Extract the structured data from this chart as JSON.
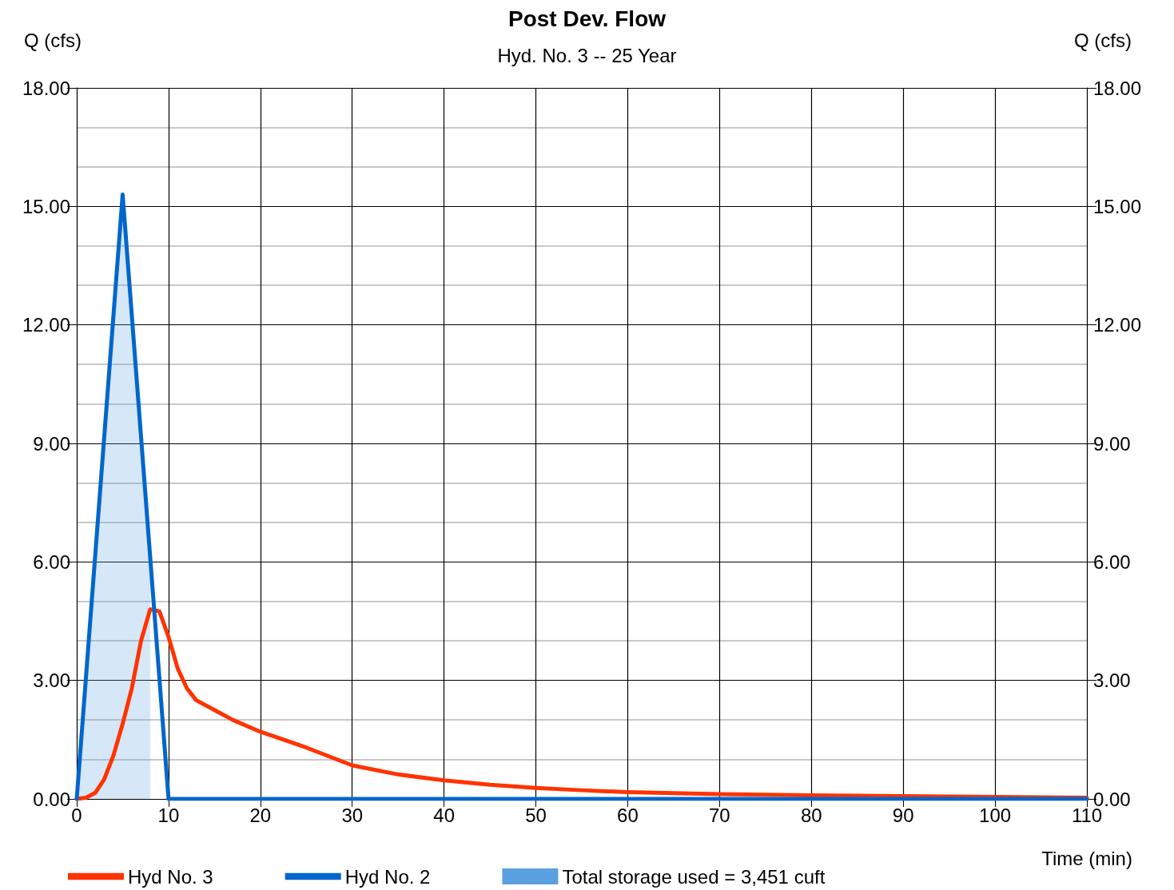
{
  "chart_data": {
    "type": "line",
    "title": "Post Dev. Flow",
    "subtitle": "Hyd. No. 3 -- 25 Year",
    "xlabel": "Time (min)",
    "ylabel": "Q (cfs)",
    "y2label": "Q (cfs)",
    "xlim": [
      0,
      110
    ],
    "xticks": [
      0,
      10,
      20,
      30,
      40,
      50,
      60,
      70,
      80,
      90,
      100,
      110
    ],
    "ylim": [
      0,
      18
    ],
    "yticks": [
      {
        "value": 0,
        "label": "0.00"
      },
      {
        "value": 3,
        "label": "3.00"
      },
      {
        "value": 6,
        "label": "6.00"
      },
      {
        "value": 9,
        "label": "9.00"
      },
      {
        "value": 12,
        "label": "12.00"
      },
      {
        "value": 15,
        "label": "15.00"
      },
      {
        "value": 18,
        "label": "18.00"
      }
    ],
    "y2lim": [
      0,
      18
    ],
    "y2ticks": [
      {
        "value": 0,
        "label": "0.00"
      },
      {
        "value": 3,
        "label": "3.00"
      },
      {
        "value": 6,
        "label": "6.00"
      },
      {
        "value": 9,
        "label": "9.00"
      },
      {
        "value": 12,
        "label": "12.00"
      },
      {
        "value": 15,
        "label": "15.00"
      },
      {
        "value": 18,
        "label": "18.00"
      }
    ],
    "grid": true,
    "legend": "bottom",
    "marker": "none",
    "line_style": "solid",
    "series": [
      {
        "name": "Hyd No. 3",
        "color": "#ff3300",
        "x": [
          0,
          1,
          2,
          3,
          4,
          5,
          6,
          7,
          8,
          9,
          10,
          11,
          12,
          13,
          15,
          17,
          20,
          25,
          30,
          35,
          40,
          45,
          50,
          55,
          60,
          70,
          80,
          90,
          100,
          110
        ],
        "values": [
          0,
          0.03,
          0.15,
          0.5,
          1.1,
          1.9,
          2.8,
          4.0,
          4.8,
          4.75,
          4.1,
          3.3,
          2.8,
          2.5,
          2.25,
          2.0,
          1.7,
          1.3,
          0.85,
          0.62,
          0.47,
          0.36,
          0.28,
          0.22,
          0.17,
          0.12,
          0.09,
          0.07,
          0.05,
          0.03
        ]
      },
      {
        "name": "Hyd No. 2",
        "color": "#0066cc",
        "x": [
          0,
          5,
          10,
          110
        ],
        "values": [
          0,
          15.3,
          0,
          0
        ]
      },
      {
        "name": "Total storage used = 3,451 cuft",
        "type": "area",
        "color": "#5aa0e0",
        "x": [
          0,
          1,
          2,
          3,
          4,
          5,
          6,
          7,
          8
        ],
        "values": [
          0,
          3.06,
          6.12,
          9.18,
          12.24,
          15.3,
          12.24,
          9.18,
          6.12
        ]
      }
    ]
  }
}
